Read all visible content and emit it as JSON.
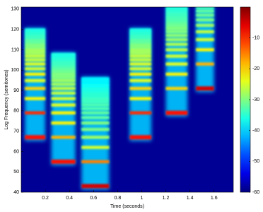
{
  "chart_data": {
    "type": "spectrogram",
    "xlabel": "Time (seconds)",
    "ylabel": "Log Frequency (semitones)",
    "xlim": [
      0,
      1.76
    ],
    "ylim": [
      40,
      131
    ],
    "xticks": [
      0.2,
      0.4,
      0.6,
      0.8,
      1,
      1.2,
      1.4,
      1.6
    ],
    "yticks": [
      40,
      50,
      60,
      70,
      80,
      90,
      100,
      110,
      120,
      130
    ],
    "clim": [
      -60,
      0
    ],
    "cticks": [
      -10,
      -20,
      -30,
      -40,
      -50,
      -60
    ],
    "colormap": "jet",
    "notes": [
      {
        "start": 0.03,
        "end": 0.2,
        "pitch": 67,
        "levels": [
          -8,
          -10,
          -22,
          -20,
          -24,
          -22,
          -25,
          -24,
          -26,
          -26,
          -28,
          -28,
          -30,
          -30,
          -32,
          -32,
          -34,
          -34,
          -35,
          -35,
          -36
        ]
      },
      {
        "start": 0.25,
        "end": 0.45,
        "pitch": 55,
        "levels": [
          -8,
          -18,
          -22,
          -22,
          -24,
          -25,
          -26,
          -26,
          -28,
          -28,
          -30,
          -30,
          -31,
          -32,
          -33,
          -34,
          -34,
          -35,
          -35,
          -36,
          -36
        ]
      },
      {
        "start": 0.5,
        "end": 0.73,
        "pitch": 43,
        "levels": [
          -5,
          -15,
          -25,
          -28,
          -30,
          -30,
          -32,
          -32,
          -33,
          -33,
          -34,
          -34,
          -35,
          -35,
          -36,
          -36,
          -37,
          -37,
          -38,
          -38,
          -38
        ]
      },
      {
        "start": 0.9,
        "end": 1.08,
        "pitch": 67,
        "levels": [
          -8,
          -10,
          -22,
          -20,
          -24,
          -22,
          -25,
          -24,
          -26,
          -26,
          -28,
          -28,
          -30,
          -30,
          -32,
          -32,
          -34,
          -34,
          -35,
          -35,
          -36
        ]
      },
      {
        "start": 1.2,
        "end": 1.38,
        "pitch": 79,
        "levels": [
          -8,
          -20,
          -22,
          -24,
          -25,
          -26,
          -27,
          -28,
          -29,
          -30,
          -30,
          -31,
          -32,
          -33,
          -33,
          -34,
          -34,
          -35,
          -35,
          -36
        ]
      },
      {
        "start": 1.45,
        "end": 1.6,
        "pitch": 91,
        "levels": [
          -5,
          -18,
          -22,
          -25,
          -26,
          -28,
          -30,
          -31,
          -32,
          -34
        ]
      }
    ]
  }
}
